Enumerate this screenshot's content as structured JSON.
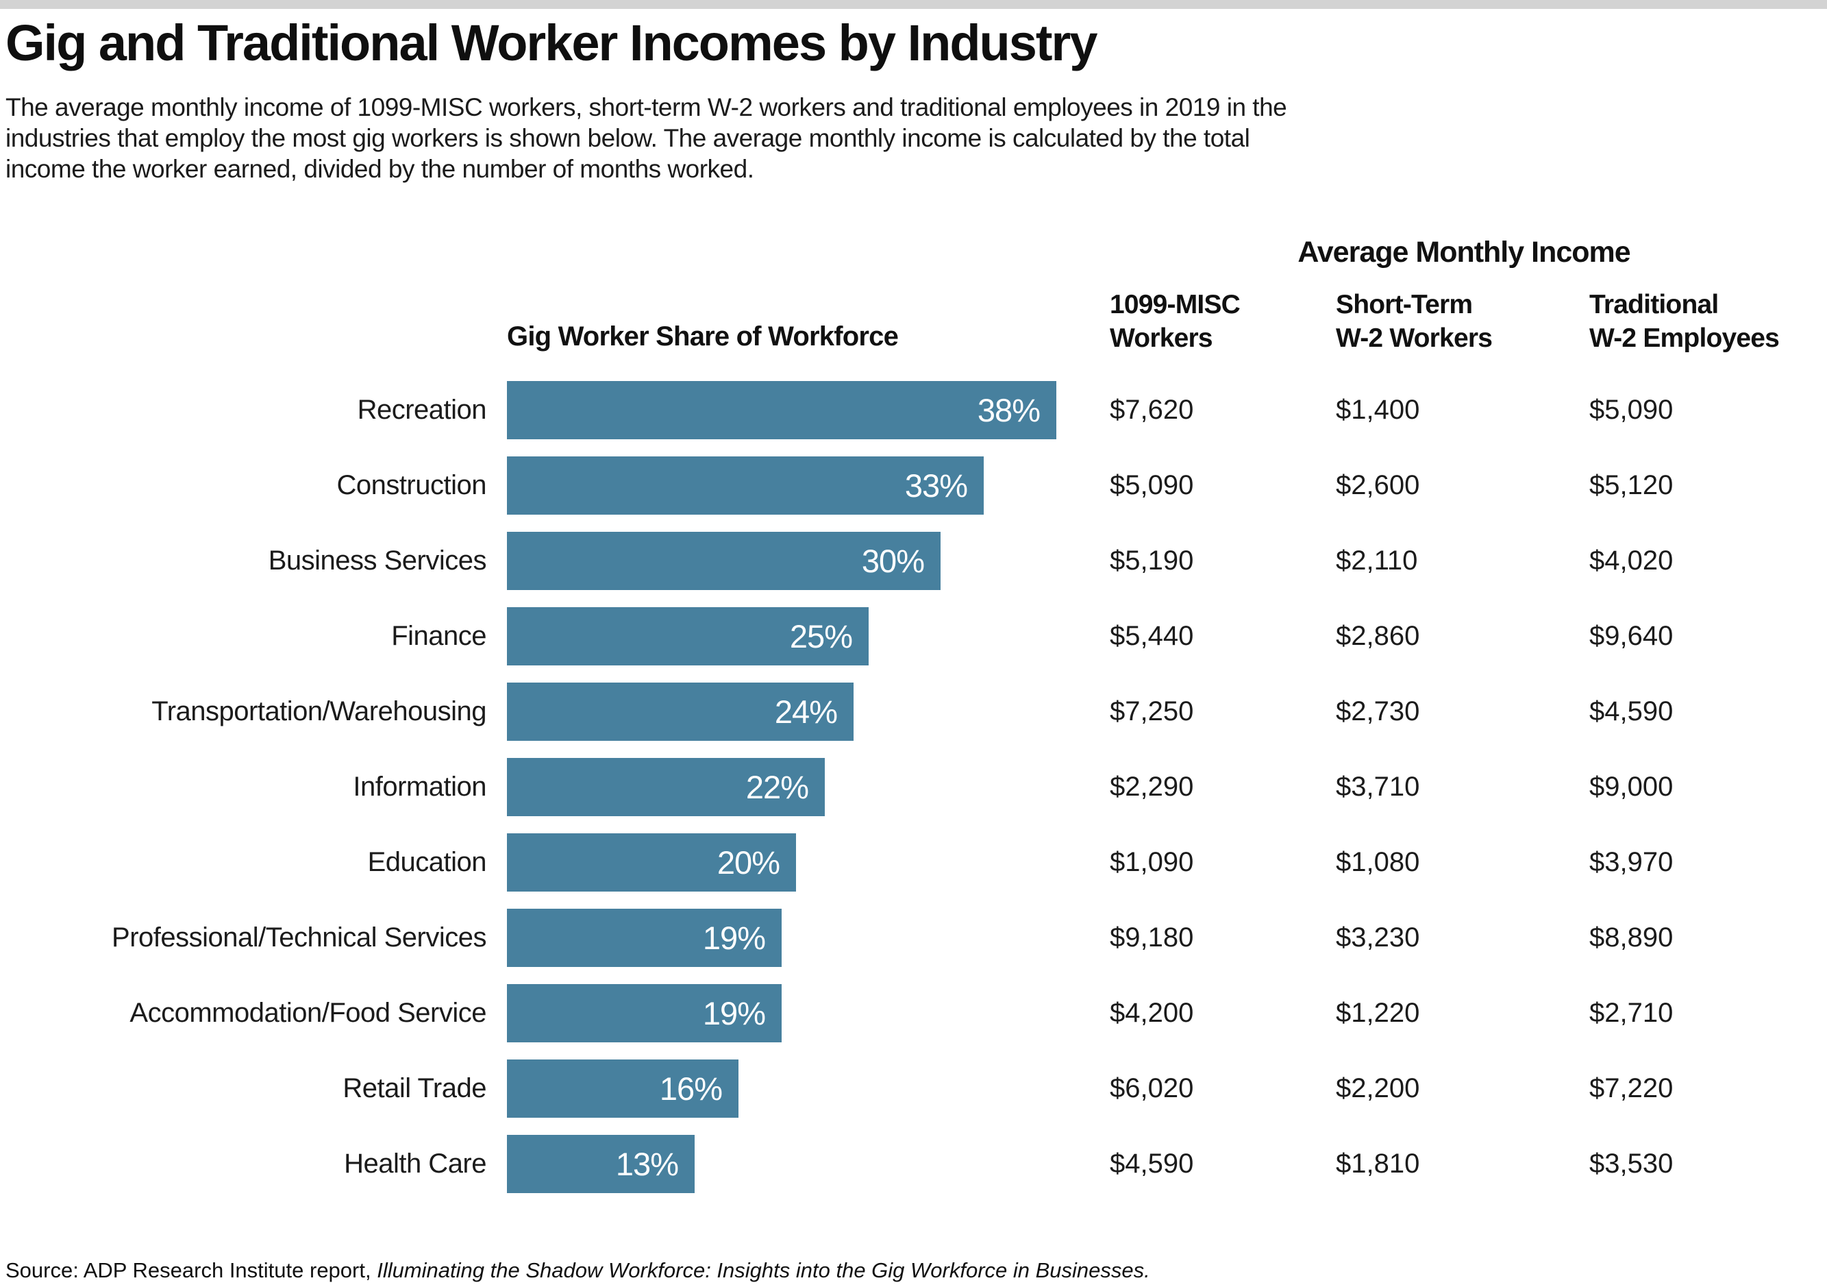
{
  "page": {
    "title": "Gig and Traditional Worker Incomes by Industry",
    "subtitle": "The average monthly income of 1099-MISC workers, short-term W-2 workers and traditional employees in 2019 in the\nindustries that employ the most gig workers is shown below. The average monthly income is calculated by the total\nincome the worker earned, divided by the number of months worked.",
    "source_prefix": "Source: ADP Research Institute report, ",
    "source_italic": "Illuminating the Shadow Workforce: Insights into the Gig Workforce in Businesses."
  },
  "headers": {
    "group": "Average Monthly Income",
    "chart": "Gig Worker Share of Workforce",
    "col_1099": "1099-MISC\nWorkers",
    "col_short_term": "Short-Term\nW-2 Workers",
    "col_traditional": "Traditional\nW-2 Employees"
  },
  "colors": {
    "bar": "#47809E",
    "top_strip": "#D3D3D3",
    "bar_label_text": "#FFFFFF",
    "text": "#1B1B1B"
  },
  "chart_data": {
    "type": "bar",
    "orientation": "horizontal",
    "title": "Gig Worker Share of Workforce",
    "categories": [
      "Recreation",
      "Construction",
      "Business Services",
      "Finance",
      "Transportation/Warehousing",
      "Information",
      "Education",
      "Professional/Technical Services",
      "Accommodation/Food Service",
      "Retail Trade",
      "Health Care"
    ],
    "values": [
      38,
      33,
      30,
      25,
      24,
      22,
      20,
      19,
      19,
      16,
      13
    ],
    "value_unit": "percent",
    "xlim": [
      0,
      40
    ],
    "grid": false,
    "legend": false,
    "bar_color": "#47809E",
    "series": [
      {
        "name": "1099-MISC Workers",
        "values": [
          7620,
          5090,
          5190,
          5440,
          7250,
          2290,
          1090,
          9180,
          4200,
          6020,
          4590
        ]
      },
      {
        "name": "Short-Term W-2 Workers",
        "values": [
          1400,
          2600,
          2110,
          2860,
          2730,
          3710,
          1080,
          3230,
          1220,
          2200,
          1810
        ]
      },
      {
        "name": "Traditional W-2 Employees",
        "values": [
          5090,
          5120,
          4020,
          9640,
          4590,
          9000,
          3970,
          8890,
          2710,
          7220,
          3530
        ]
      }
    ]
  },
  "rows": [
    {
      "label": "Recreation",
      "pct": "38%",
      "income_1099": "$7,620",
      "income_short_term_w2": "$1,400",
      "income_traditional_w2": "$5,090"
    },
    {
      "label": "Construction",
      "pct": "33%",
      "income_1099": "$5,090",
      "income_short_term_w2": "$2,600",
      "income_traditional_w2": "$5,120"
    },
    {
      "label": "Business Services",
      "pct": "30%",
      "income_1099": "$5,190",
      "income_short_term_w2": "$2,110",
      "income_traditional_w2": "$4,020"
    },
    {
      "label": "Finance",
      "pct": "25%",
      "income_1099": "$5,440",
      "income_short_term_w2": "$2,860",
      "income_traditional_w2": "$9,640"
    },
    {
      "label": "Transportation/Warehousing",
      "pct": "24%",
      "income_1099": "$7,250",
      "income_short_term_w2": "$2,730",
      "income_traditional_w2": "$4,590"
    },
    {
      "label": "Information",
      "pct": "22%",
      "income_1099": "$2,290",
      "income_short_term_w2": "$3,710",
      "income_traditional_w2": "$9,000"
    },
    {
      "label": "Education",
      "pct": "20%",
      "income_1099": "$1,090",
      "income_short_term_w2": "$1,080",
      "income_traditional_w2": "$3,970"
    },
    {
      "label": "Professional/Technical Services",
      "pct": "19%",
      "income_1099": "$9,180",
      "income_short_term_w2": "$3,230",
      "income_traditional_w2": "$8,890"
    },
    {
      "label": "Accommodation/Food Service",
      "pct": "19%",
      "income_1099": "$4,200",
      "income_short_term_w2": "$1,220",
      "income_traditional_w2": "$2,710"
    },
    {
      "label": "Retail Trade",
      "pct": "16%",
      "income_1099": "$6,020",
      "income_short_term_w2": "$2,200",
      "income_traditional_w2": "$7,220"
    },
    {
      "label": "Health Care",
      "pct": "13%",
      "income_1099": "$4,590",
      "income_short_term_w2": "$1,810",
      "income_traditional_w2": "$3,530"
    }
  ]
}
